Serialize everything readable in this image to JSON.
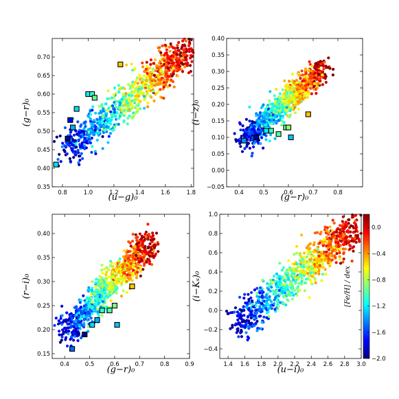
{
  "chart_data": [
    {
      "type": "scatter",
      "xlabel": "(u−g)₀",
      "ylabel": "(g−r)₀",
      "xlim": [
        0.72,
        1.82
      ],
      "ylim": [
        0.35,
        0.75
      ],
      "xticks": [
        "0.8",
        "1.0",
        "1.2",
        "1.4",
        "1.6",
        "1.8"
      ],
      "xtick_values": [
        0.8,
        1.0,
        1.2,
        1.4,
        1.6,
        1.8
      ],
      "yticks": [
        "0.35",
        "0.40",
        "0.45",
        "0.50",
        "0.55",
        "0.60",
        "0.65",
        "0.70"
      ],
      "ytick_values": [
        0.35,
        0.4,
        0.45,
        0.5,
        0.55,
        0.6,
        0.65,
        0.7
      ],
      "trend": {
        "x0": 0.82,
        "x1": 1.78,
        "y0": 0.44,
        "y1": 0.72,
        "feh0": -1.9,
        "feh1": 0.1
      },
      "highlighted_points": [
        {
          "x": 0.75,
          "y": 0.41,
          "feh": -1.25
        },
        {
          "x": 0.84,
          "y": 0.48,
          "feh": -1.95
        },
        {
          "x": 0.86,
          "y": 0.53,
          "feh": -1.75
        },
        {
          "x": 0.88,
          "y": 0.51,
          "feh": -1.35
        },
        {
          "x": 0.91,
          "y": 0.56,
          "feh": -1.25
        },
        {
          "x": 1.0,
          "y": 0.6,
          "feh": -1.2
        },
        {
          "x": 1.03,
          "y": 0.6,
          "feh": -1.05
        },
        {
          "x": 1.05,
          "y": 0.59,
          "feh": -0.95
        },
        {
          "x": 1.25,
          "y": 0.68,
          "feh": -0.5
        }
      ]
    },
    {
      "type": "scatter",
      "xlabel": "(g−r)₀",
      "ylabel": "(i−z)₀",
      "xlim": [
        0.35,
        0.9
      ],
      "ylim": [
        -0.05,
        0.4
      ],
      "xticks": [
        "0.4",
        "0.5",
        "0.6",
        "0.7",
        "0.8"
      ],
      "xtick_values": [
        0.4,
        0.5,
        0.6,
        0.7,
        0.8
      ],
      "yticks": [
        "−0.05",
        "0.00",
        "0.05",
        "0.10",
        "0.15",
        "0.20",
        "0.25",
        "0.30",
        "0.35",
        "0.40"
      ],
      "ytick_values": [
        -0.05,
        0.0,
        0.05,
        0.1,
        0.15,
        0.2,
        0.25,
        0.3,
        0.35,
        0.4
      ],
      "trend": {
        "x0": 0.42,
        "x1": 0.74,
        "y0": 0.09,
        "y1": 0.31,
        "feh0": -1.9,
        "feh1": 0.1
      },
      "highlighted_points": [
        {
          "x": 0.42,
          "y": 0.09,
          "feh": -1.4
        },
        {
          "x": 0.47,
          "y": 0.1,
          "feh": -1.95
        },
        {
          "x": 0.51,
          "y": 0.12,
          "feh": -1.2
        },
        {
          "x": 0.53,
          "y": 0.12,
          "feh": -1.05
        },
        {
          "x": 0.56,
          "y": 0.11,
          "feh": -1.0
        },
        {
          "x": 0.59,
          "y": 0.13,
          "feh": -0.95
        },
        {
          "x": 0.6,
          "y": 0.13,
          "feh": -0.85
        },
        {
          "x": 0.61,
          "y": 0.1,
          "feh": -1.3
        },
        {
          "x": 0.68,
          "y": 0.17,
          "feh": -0.5
        }
      ]
    },
    {
      "type": "scatter",
      "xlabel": "(g−r)₀",
      "ylabel": "(r−i)₀",
      "xlim": [
        0.35,
        0.9
      ],
      "ylim": [
        0.14,
        0.44
      ],
      "xticks": [
        "0.4",
        "0.5",
        "0.6",
        "0.7",
        "0.8",
        "0.9"
      ],
      "xtick_values": [
        0.4,
        0.5,
        0.6,
        0.7,
        0.8,
        0.9
      ],
      "yticks": [
        "0.15",
        "0.20",
        "0.25",
        "0.30",
        "0.35",
        "0.40"
      ],
      "ytick_values": [
        0.15,
        0.2,
        0.25,
        0.3,
        0.35,
        0.4
      ],
      "trend": {
        "x0": 0.4,
        "x1": 0.74,
        "y0": 0.19,
        "y1": 0.38,
        "feh0": -1.9,
        "feh1": 0.1
      },
      "highlighted_points": [
        {
          "x": 0.43,
          "y": 0.16,
          "feh": -1.5
        },
        {
          "x": 0.48,
          "y": 0.19,
          "feh": -1.95
        },
        {
          "x": 0.51,
          "y": 0.21,
          "feh": -1.25
        },
        {
          "x": 0.53,
          "y": 0.22,
          "feh": -1.35
        },
        {
          "x": 0.55,
          "y": 0.24,
          "feh": -1.05
        },
        {
          "x": 0.58,
          "y": 0.24,
          "feh": -1.0
        },
        {
          "x": 0.6,
          "y": 0.25,
          "feh": -0.9
        },
        {
          "x": 0.61,
          "y": 0.21,
          "feh": -1.3
        },
        {
          "x": 0.67,
          "y": 0.29,
          "feh": -0.5
        }
      ]
    },
    {
      "type": "scatter",
      "xlabel": "(u−i)₀",
      "ylabel": "(i−Kₛ)₀",
      "xlim": [
        1.3,
        3.0
      ],
      "ylim": [
        -0.5,
        1.0
      ],
      "xticks": [
        "1.4",
        "1.6",
        "1.8",
        "2.0",
        "2.2",
        "2.4",
        "2.6",
        "2.8",
        "3.0"
      ],
      "xtick_values": [
        1.4,
        1.6,
        1.8,
        2.0,
        2.2,
        2.4,
        2.6,
        2.8,
        3.0
      ],
      "yticks": [
        "−0.4",
        "−0.2",
        "0.0",
        "0.2",
        "0.4",
        "0.6",
        "0.8",
        "1.0"
      ],
      "ytick_values": [
        -0.4,
        -0.2,
        0.0,
        0.2,
        0.4,
        0.6,
        0.8,
        1.0
      ],
      "trend": {
        "x0": 1.5,
        "x1": 2.9,
        "y0": -0.15,
        "y1": 0.85,
        "feh0": -1.9,
        "feh1": 0.1
      },
      "highlighted_points": []
    }
  ],
  "colorbar": {
    "label": "[Fe/H] / dex",
    "range": [
      -2.0,
      0.2
    ],
    "ticks": [
      "0.0",
      "−0.4",
      "−0.8",
      "−1.2",
      "−1.6",
      "−2.0"
    ],
    "tick_values": [
      0.0,
      -0.4,
      -0.8,
      -1.2,
      -1.6,
      -2.0
    ]
  }
}
